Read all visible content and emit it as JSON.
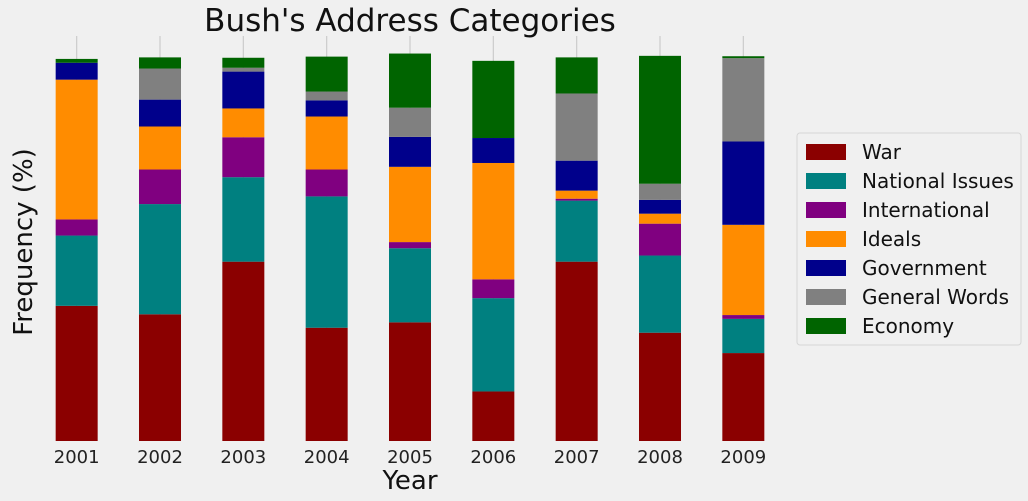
{
  "chart_data": {
    "type": "bar",
    "stacked": true,
    "title": "Bush's Address Categories",
    "xlabel": "Year",
    "ylabel": "Frequency (%)",
    "ylim": [
      0,
      100
    ],
    "y_ticks_visible": false,
    "grid": "vertical",
    "legend_position": "right",
    "categories": [
      "2001",
      "2002",
      "2003",
      "2004",
      "2005",
      "2006",
      "2007",
      "2008",
      "2009"
    ],
    "series": [
      {
        "name": "War",
        "color": "#8b0000",
        "values": [
          35.2,
          33.0,
          46.7,
          29.5,
          30.9,
          12.9,
          46.7,
          28.2,
          22.9
        ]
      },
      {
        "name": "National Issues",
        "color": "#008080",
        "values": [
          18.3,
          28.7,
          22.0,
          34.2,
          19.3,
          24.3,
          15.9,
          20.1,
          8.9
        ]
      },
      {
        "name": "International",
        "color": "#800080",
        "values": [
          4.2,
          9.0,
          10.4,
          7.0,
          1.6,
          4.9,
          0.5,
          8.3,
          1.0
        ]
      },
      {
        "name": "Ideals",
        "color": "#ff8c00",
        "values": [
          36.4,
          11.2,
          7.5,
          13.8,
          19.6,
          30.3,
          2.1,
          2.6,
          23.5
        ]
      },
      {
        "name": "Government",
        "color": "#00008b",
        "values": [
          4.4,
          7.0,
          9.6,
          4.2,
          7.8,
          6.5,
          7.8,
          3.6,
          21.7
        ]
      },
      {
        "name": "General Words",
        "color": "#808080",
        "values": [
          0.0,
          8.1,
          1.0,
          2.3,
          7.6,
          0.0,
          17.5,
          4.2,
          21.7
        ]
      },
      {
        "name": "Economy",
        "color": "#006400",
        "values": [
          1.0,
          2.9,
          2.6,
          9.1,
          14.1,
          20.1,
          9.4,
          33.3,
          0.5
        ]
      }
    ]
  }
}
